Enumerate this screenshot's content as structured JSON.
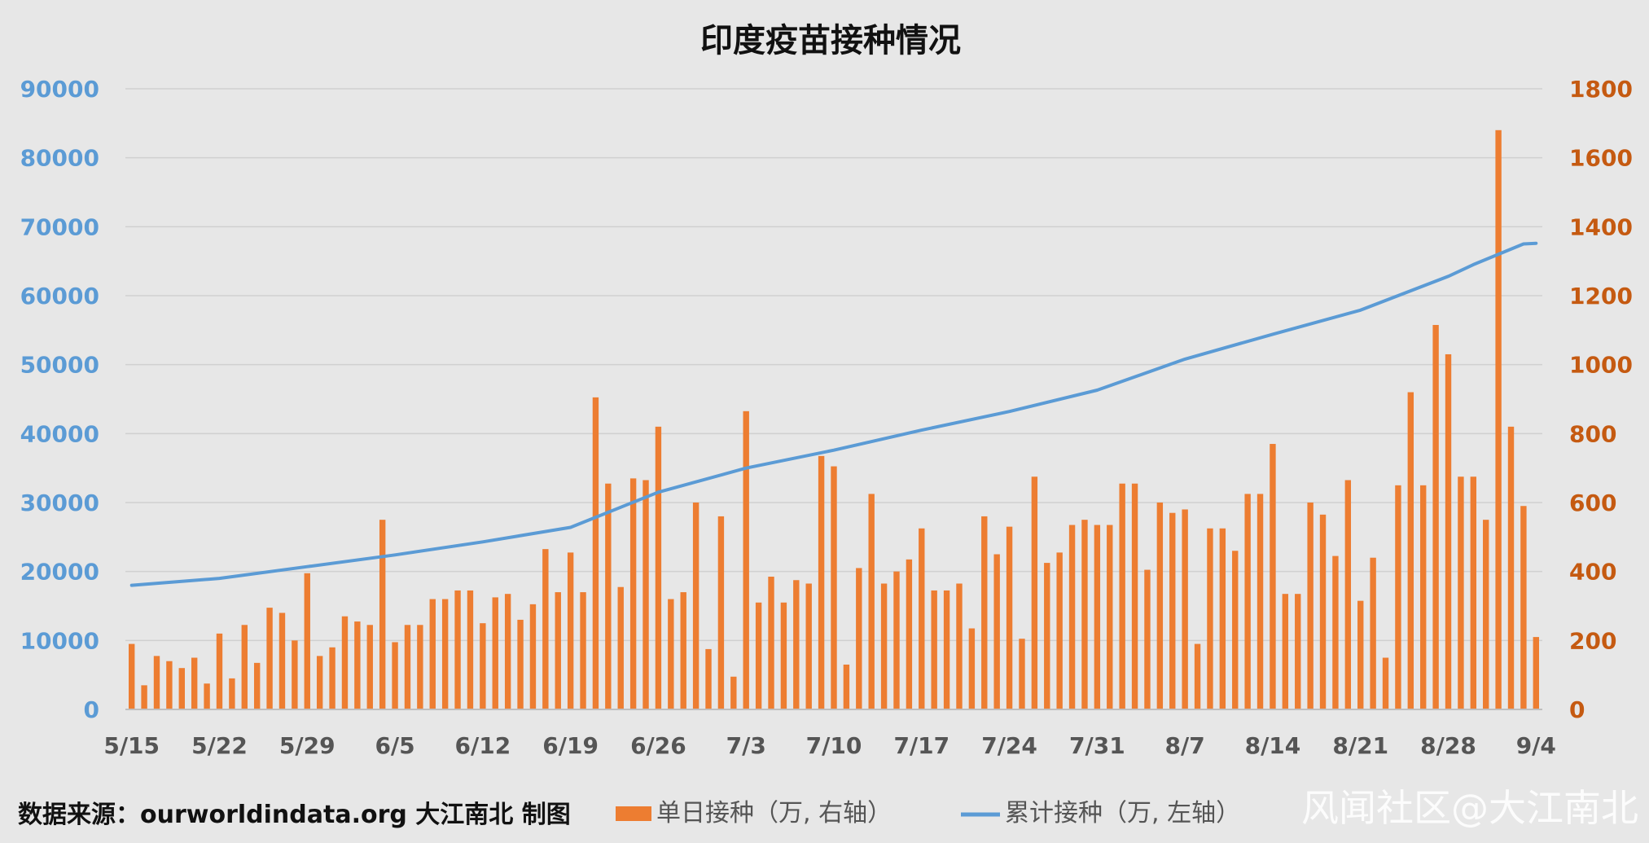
{
  "chart_data": {
    "type": "bar+line",
    "title": "印度疫苗接种情况",
    "x_ticks": [
      "5/15",
      "5/22",
      "5/29",
      "6/5",
      "6/12",
      "6/19",
      "6/26",
      "7/3",
      "7/10",
      "7/17",
      "7/24",
      "7/31",
      "8/7",
      "8/14",
      "8/21",
      "8/28",
      "9/4"
    ],
    "y_left": {
      "min": 0,
      "max": 90000,
      "ticks": [
        "0",
        "10000",
        "20000",
        "30000",
        "40000",
        "50000",
        "60000",
        "70000",
        "80000",
        "90000"
      ],
      "color": "#5b9bd5"
    },
    "y_right": {
      "min": 0,
      "max": 1800,
      "ticks": [
        "0",
        "200",
        "400",
        "600",
        "800",
        "1000",
        "1200",
        "1400",
        "1600",
        "1800"
      ],
      "color": "#c55a11"
    },
    "grid": true,
    "legend_position": "bottom",
    "series": [
      {
        "name": "单日接种（万, 右轴）",
        "kind": "bar",
        "axis": "right",
        "color": "#ed7d31",
        "values": [
          190,
          70,
          155,
          140,
          120,
          150,
          75,
          220,
          90,
          245,
          135,
          295,
          280,
          200,
          395,
          155,
          180,
          270,
          255,
          245,
          550,
          195,
          245,
          245,
          320,
          320,
          345,
          345,
          250,
          325,
          335,
          260,
          305,
          465,
          340,
          455,
          340,
          905,
          655,
          355,
          670,
          665,
          820,
          320,
          340,
          600,
          175,
          560,
          95,
          865,
          310,
          385,
          310,
          375,
          365,
          735,
          705,
          130,
          410,
          625,
          365,
          400,
          435,
          525,
          345,
          345,
          365,
          235,
          560,
          450,
          530,
          205,
          675,
          425,
          455,
          535,
          550,
          535,
          535,
          655,
          655,
          405,
          600,
          570,
          580,
          190,
          525,
          525,
          460,
          625,
          625,
          770,
          335,
          335,
          600,
          565,
          445,
          665,
          315,
          440,
          150,
          650,
          920,
          650,
          1115,
          1030,
          675,
          675,
          550,
          1680,
          820,
          590,
          210
        ]
      },
      {
        "name": "累计接种（万, 左轴）",
        "kind": "line",
        "axis": "left",
        "color": "#5b9bd5",
        "points": [
          [
            0,
            18000
          ],
          [
            7,
            19000
          ],
          [
            14,
            20700
          ],
          [
            21,
            22400
          ],
          [
            28,
            24300
          ],
          [
            35,
            26400
          ],
          [
            42,
            31500
          ],
          [
            49,
            35000
          ],
          [
            56,
            37600
          ],
          [
            63,
            40500
          ],
          [
            70,
            43200
          ],
          [
            77,
            46300
          ],
          [
            84,
            50800
          ],
          [
            91,
            54400
          ],
          [
            98,
            57900
          ],
          [
            105,
            62800
          ],
          [
            107,
            64500
          ],
          [
            111,
            67500
          ],
          [
            112,
            67600
          ]
        ]
      }
    ],
    "source": "数据来源：ourworldindata.org 大江南北 制图",
    "watermark": "风闻社区@大江南北"
  }
}
